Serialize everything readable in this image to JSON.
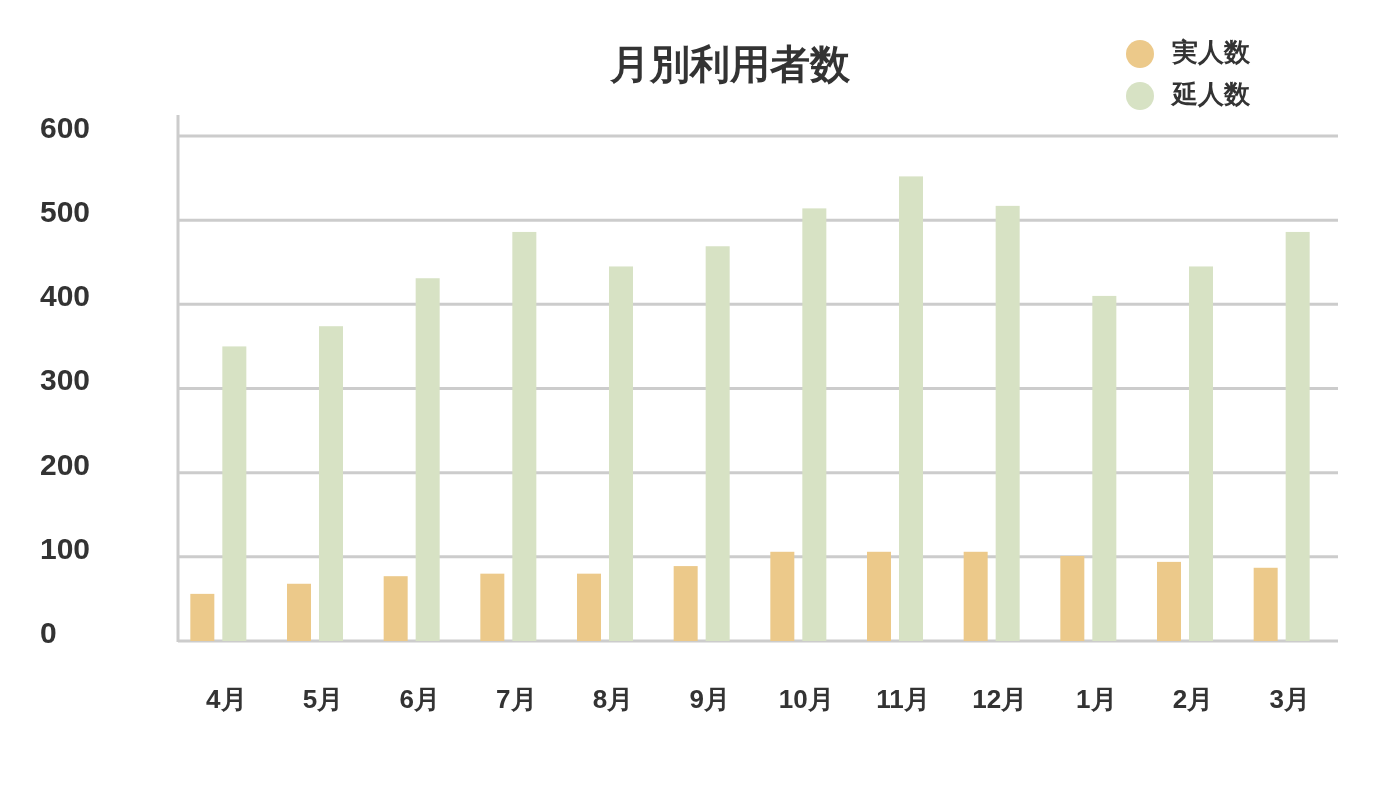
{
  "chart_data": {
    "type": "bar",
    "title": "月別利用者数",
    "categories": [
      "4月",
      "5月",
      "6月",
      "7月",
      "8月",
      "9月",
      "10月",
      "11月",
      "12月",
      "1月",
      "2月",
      "3月"
    ],
    "series": [
      {
        "name": "実人数",
        "color": "#ecc98a",
        "values": [
          56,
          68,
          77,
          80,
          80,
          89,
          106,
          106,
          106,
          101,
          94,
          87
        ]
      },
      {
        "name": "延人数",
        "color": "#d7e2c4",
        "values": [
          350,
          374,
          431,
          486,
          445,
          469,
          514,
          552,
          517,
          410,
          445,
          486
        ]
      }
    ],
    "ylim": [
      0,
      600
    ],
    "yticks": [
      0,
      100,
      200,
      300,
      400,
      500,
      600
    ],
    "grid": "y",
    "legend": "top right"
  }
}
